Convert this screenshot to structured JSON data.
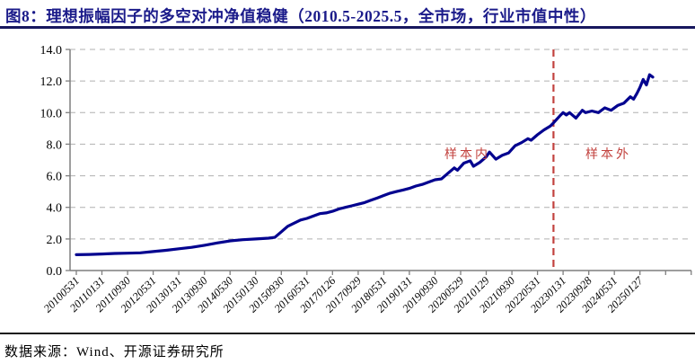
{
  "header": {
    "figure_title": "图8：理想振幅因子的多空对冲净值稳健（2010.5-2025.5，全市场，行业市值中性）"
  },
  "footer": {
    "source": "数据来源：Wind、开源证券研究所"
  },
  "colors": {
    "title": "#1b1b8a",
    "line": "#02028f",
    "divider": "#c2423e",
    "annotation": "#c2423e",
    "grid": "#b0b0b0",
    "axis": "#7f7f7f",
    "text": "#000000"
  },
  "chart_data": {
    "type": "line",
    "title": "理想振幅因子的多空对冲净值（2010.5-2025.5，全市场，行业市值中性）",
    "xlabel": "",
    "ylabel": "",
    "ylim": [
      0,
      14
    ],
    "y_ticks": [
      0,
      2,
      4,
      6,
      8,
      10,
      12,
      14
    ],
    "y_tick_labels": [
      "0.0",
      "2.0",
      "4.0",
      "6.0",
      "8.0",
      "10.0",
      "12.0",
      "14.0"
    ],
    "x_tick_labels": [
      "20100531",
      "20110131",
      "20110930",
      "20120531",
      "20130131",
      "20130930",
      "20140530",
      "20150130",
      "20150930",
      "20160531",
      "20170126",
      "20170929",
      "20180531",
      "20190131",
      "20190930",
      "20200529",
      "20210129",
      "20210930",
      "20220531",
      "20230131",
      "20230928",
      "20240531",
      "20250127"
    ],
    "grid": "horizontal-dashed",
    "legend": "none",
    "annotations": [
      {
        "text": "样本内",
        "meaning": "in-sample",
        "side": "left-of-divider"
      },
      {
        "text": "样本外",
        "meaning": "out-of-sample",
        "side": "right-of-divider"
      }
    ],
    "divider": {
      "style": "vertical-dashed",
      "color": "#c2423e",
      "date": "2022-10"
    },
    "series": [
      {
        "name": "多空对冲净值",
        "color": "#02028f",
        "x": [
          "2010-05",
          "2010-09",
          "2011-01",
          "2011-05",
          "2011-09",
          "2012-01",
          "2012-05",
          "2012-09",
          "2013-01",
          "2013-05",
          "2013-09",
          "2014-01",
          "2014-05",
          "2014-09",
          "2015-01",
          "2015-05",
          "2015-07",
          "2015-09",
          "2015-11",
          "2016-01",
          "2016-03",
          "2016-05",
          "2016-07",
          "2016-09",
          "2016-11",
          "2017-01",
          "2017-03",
          "2017-05",
          "2017-07",
          "2017-09",
          "2017-11",
          "2018-01",
          "2018-03",
          "2018-05",
          "2018-07",
          "2018-09",
          "2018-11",
          "2019-01",
          "2019-03",
          "2019-05",
          "2019-07",
          "2019-09",
          "2019-11",
          "2020-01",
          "2020-03",
          "2020-04",
          "2020-06",
          "2020-08",
          "2020-09",
          "2020-11",
          "2021-01",
          "2021-02",
          "2021-04",
          "2021-06",
          "2021-08",
          "2021-10",
          "2021-12",
          "2022-02",
          "2022-03",
          "2022-05",
          "2022-07",
          "2022-09",
          "2022-10",
          "2022-12",
          "2023-01",
          "2023-02",
          "2023-03",
          "2023-05",
          "2023-07",
          "2023-08",
          "2023-10",
          "2023-12",
          "2024-02",
          "2024-04",
          "2024-06",
          "2024-08",
          "2024-10",
          "2024-11",
          "2024-12",
          "2025-01",
          "2025-02",
          "2025-03",
          "2025-04",
          "2025-05"
        ],
        "values": [
          1.0,
          1.02,
          1.05,
          1.08,
          1.1,
          1.12,
          1.2,
          1.28,
          1.38,
          1.47,
          1.6,
          1.75,
          1.88,
          1.95,
          2.0,
          2.05,
          2.1,
          2.45,
          2.8,
          3.0,
          3.2,
          3.3,
          3.45,
          3.6,
          3.65,
          3.75,
          3.9,
          4.0,
          4.1,
          4.2,
          4.3,
          4.45,
          4.6,
          4.75,
          4.9,
          5.0,
          5.1,
          5.2,
          5.35,
          5.45,
          5.6,
          5.75,
          5.8,
          6.15,
          6.5,
          6.35,
          6.8,
          6.95,
          6.6,
          6.85,
          7.2,
          7.5,
          7.05,
          7.3,
          7.45,
          7.9,
          8.1,
          8.35,
          8.25,
          8.6,
          8.9,
          9.15,
          9.35,
          9.8,
          10.0,
          9.85,
          10.0,
          9.65,
          10.15,
          10.0,
          10.1,
          10.0,
          10.3,
          10.15,
          10.45,
          10.6,
          11.0,
          10.85,
          11.2,
          11.6,
          12.1,
          11.75,
          12.4,
          12.25
        ]
      }
    ]
  }
}
